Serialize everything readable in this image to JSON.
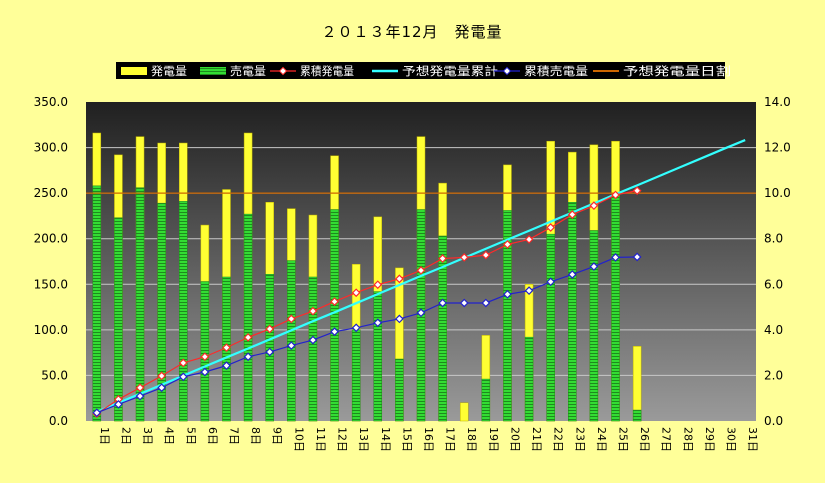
{
  "chart_data": {
    "type": "bar",
    "title": "２０１３年12月　発電量",
    "categories": [
      "1日",
      "2日",
      "3日",
      "4日",
      "5日",
      "6日",
      "7日",
      "8日",
      "9日",
      "10日",
      "11日",
      "12日",
      "13日",
      "14日",
      "15日",
      "16日",
      "17日",
      "18日",
      "19日",
      "20日",
      "21日",
      "22日",
      "23日",
      "24日",
      "25日",
      "26日",
      "27日",
      "28日",
      "29日",
      "30日",
      "31日"
    ],
    "ylim": [
      0,
      350
    ],
    "y2lim": [
      0,
      14
    ],
    "yticks": [
      "0.0",
      "50.0",
      "100.0",
      "150.0",
      "200.0",
      "250.0",
      "300.0",
      "350.0"
    ],
    "y2ticks": [
      "0.0",
      "2.0",
      "4.0",
      "6.0",
      "8.0",
      "10.0",
      "12.0",
      "14.0"
    ],
    "legend_position": "top",
    "series": [
      {
        "name": "発電量",
        "kind": "bar",
        "axis": "left",
        "color": "#ffff33",
        "values": [
          316,
          292,
          312,
          305,
          305,
          215,
          254,
          316,
          240,
          233,
          226,
          291,
          172,
          224,
          168,
          312,
          261,
          20,
          94,
          281,
          150,
          307,
          295,
          303,
          307,
          82,
          null,
          null,
          null,
          null,
          null
        ]
      },
      {
        "name": "売電量",
        "kind": "bar",
        "axis": "left",
        "color": "#33dd33",
        "values": [
          258,
          223,
          256,
          239,
          241,
          153,
          158,
          227,
          161,
          176,
          158,
          232,
          100,
          142,
          68,
          232,
          203,
          0,
          46,
          231,
          92,
          205,
          240,
          209,
          249,
          12,
          null,
          null,
          null,
          null,
          null
        ]
      },
      {
        "name": "累積発電量",
        "kind": "line",
        "axis": "right",
        "color": "#ff2a2a",
        "values": [
          0.32,
          0.95,
          1.46,
          1.98,
          2.55,
          2.82,
          3.22,
          3.67,
          4.04,
          4.48,
          4.82,
          5.24,
          5.63,
          5.98,
          6.24,
          6.61,
          7.13,
          7.18,
          7.28,
          7.75,
          7.97,
          8.49,
          9.06,
          9.45,
          9.92,
          10.11,
          null,
          null,
          null,
          null,
          null
        ]
      },
      {
        "name": "予想発電量累計",
        "kind": "line",
        "axis": "right",
        "color": "#33ffff",
        "values": [
          0.4,
          0.8,
          1.19,
          1.59,
          1.99,
          2.39,
          2.79,
          3.18,
          3.58,
          3.98,
          4.38,
          4.77,
          5.17,
          5.57,
          5.97,
          6.37,
          6.76,
          7.16,
          7.56,
          7.96,
          8.35,
          8.75,
          9.15,
          9.55,
          9.95,
          10.34,
          10.74,
          11.14,
          11.54,
          11.94,
          12.33
        ]
      },
      {
        "name": "累積売電量",
        "kind": "line",
        "axis": "right",
        "color": "#2222cc",
        "values": [
          0.36,
          0.73,
          1.09,
          1.46,
          1.94,
          2.15,
          2.43,
          2.82,
          3.03,
          3.31,
          3.55,
          3.92,
          4.09,
          4.31,
          4.48,
          4.75,
          5.18,
          5.18,
          5.18,
          5.56,
          5.72,
          6.11,
          6.43,
          6.78,
          7.18,
          7.2,
          null,
          null,
          null,
          null,
          null
        ]
      },
      {
        "name": "予想発電量日割",
        "kind": "hline",
        "axis": "left",
        "color": "#cc6600",
        "value": 250
      }
    ]
  }
}
